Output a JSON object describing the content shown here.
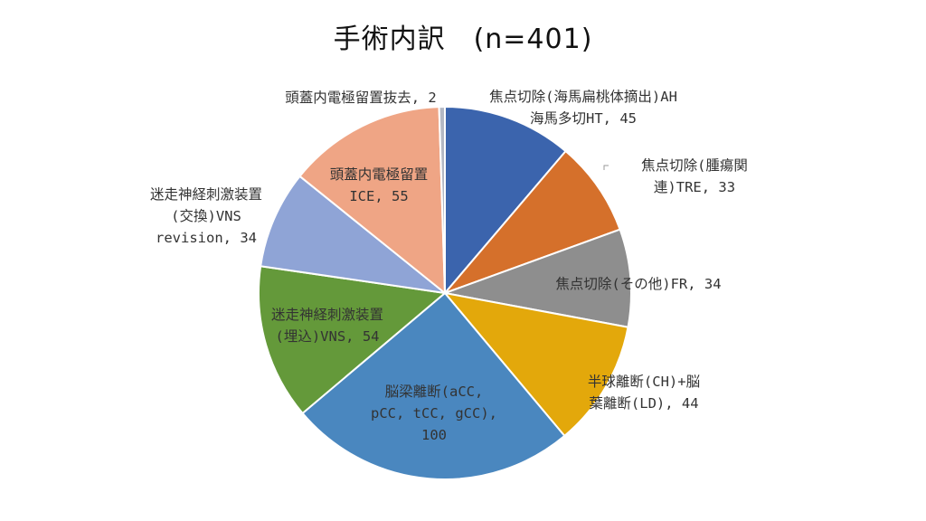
{
  "chart_data": {
    "type": "pie",
    "title": "手術内訳　(n=401)",
    "slices": [
      {
        "name": "焦点切除(海馬扁桃体摘出)AH 海馬多切HT",
        "value": 45,
        "color": "#3b64ad",
        "label_lines": [
          "焦点切除(海馬扁桃体摘出)AH",
          "海馬多切HT, 45"
        ]
      },
      {
        "name": "焦点切除(腫瘍関連)TRE",
        "value": 33,
        "color": "#d5702b",
        "label_lines": [
          "焦点切除(腫瘍関",
          "連)TRE, 33"
        ]
      },
      {
        "name": "焦点切除(その他)FR",
        "value": 34,
        "color": "#8e8e8e",
        "label_lines": [
          "焦点切除(その他)FR, 34"
        ]
      },
      {
        "name": "半球離断(CH)+脳葉離断(LD)",
        "value": 44,
        "color": "#e3a80b",
        "label_lines": [
          "半球離断(CH)+脳",
          "葉離断(LD), 44"
        ]
      },
      {
        "name": "脳梁離断(aCC, pCC, tCC, gCC)",
        "value": 100,
        "color": "#4a87bf",
        "label_lines": [
          "脳梁離断(aCC,",
          "pCC, tCC, gCC),",
          "100"
        ]
      },
      {
        "name": "迷走神経刺激装置(埋込)VNS",
        "value": 54,
        "color": "#64993a",
        "label_lines": [
          "迷走神経刺激装置",
          "(埋込)VNS, 54"
        ]
      },
      {
        "name": "迷走神経刺激装置(交換)VNS revision",
        "value": 34,
        "color": "#8fa4d6",
        "label_lines": [
          "迷走神経刺激装置",
          "(交換)VNS",
          "revision, 34"
        ]
      },
      {
        "name": "頭蓋内電極留置ICE",
        "value": 55,
        "color": "#efa585",
        "label_lines": [
          "頭蓋内電極留置",
          "ICE, 55"
        ]
      },
      {
        "name": "頭蓋内電極留置抜去",
        "value": 2,
        "color": "#b3b8c4",
        "label_lines": [
          "頭蓋内電極留置抜去, 2"
        ]
      }
    ]
  }
}
